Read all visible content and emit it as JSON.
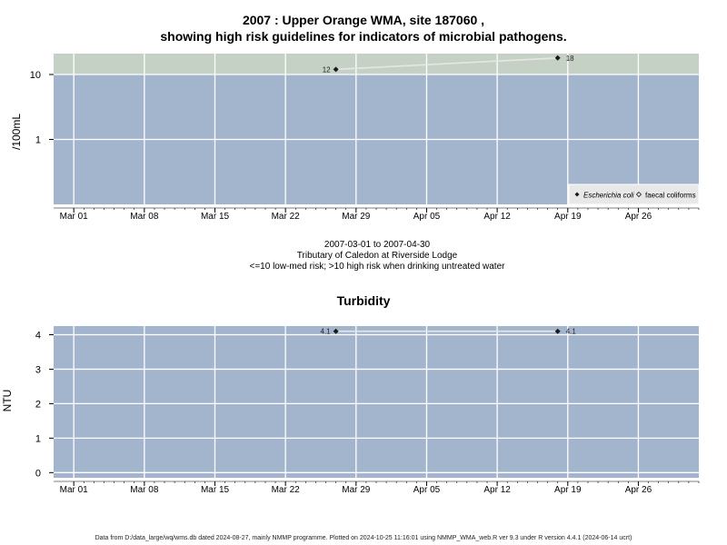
{
  "chart_data": [
    {
      "type": "line",
      "title": "2007 : Upper Orange WMA, site 187060 ,",
      "subtitle": "showing high risk guidelines for indicators of microbial pathogens.",
      "xlabel": "",
      "ylabel": "/100mL",
      "y_scale": "log",
      "x_range": [
        "2007-02-27",
        "2007-05-02"
      ],
      "ylim": [
        0.1,
        21
      ],
      "x_tick_labels": [
        "Mar 01",
        "Mar 08",
        "Mar 15",
        "Mar 22",
        "Mar 29",
        "Apr 05",
        "Apr 12",
        "Apr 19",
        "Apr 26"
      ],
      "y_tick_labels": [
        "1",
        "10"
      ],
      "y_ticks": [
        1,
        10
      ],
      "grid": true,
      "bands": [
        {
          "from": 0.1,
          "to": 10,
          "color": "#a2b5cd"
        },
        {
          "from": 10,
          "to": 21,
          "color": "#c6d1c6"
        }
      ],
      "legend_position": "bottom-right",
      "series": [
        {
          "name": "Escherichia coli",
          "marker": "filled-diamond",
          "x": [
            "2007-03-27",
            "2007-04-18"
          ],
          "y": [
            12,
            18
          ],
          "labels": [
            "12",
            "18"
          ]
        },
        {
          "name": "faecal coliforms",
          "marker": "open-diamond",
          "x": [],
          "y": []
        }
      ]
    },
    {
      "type": "line",
      "title": "Turbidity",
      "xlabel": "",
      "ylabel": "NTU",
      "x_range": [
        "2007-02-27",
        "2007-05-02"
      ],
      "ylim": [
        -0.15,
        4.25
      ],
      "x_tick_labels": [
        "Mar 01",
        "Mar 08",
        "Mar 15",
        "Mar 22",
        "Mar 29",
        "Apr 05",
        "Apr 12",
        "Apr 19",
        "Apr 26"
      ],
      "y_tick_labels": [
        "0",
        "1",
        "2",
        "3",
        "4"
      ],
      "y_ticks": [
        0,
        1,
        2,
        3,
        4
      ],
      "grid": true,
      "series": [
        {
          "x": [
            "2007-03-27",
            "2007-04-18"
          ],
          "y": [
            4.1,
            4.1
          ],
          "labels": [
            "4.1",
            "4.1"
          ]
        }
      ]
    }
  ],
  "range_text": "2007-03-01 to 2007-04-30",
  "site_text": "Tributary of Caledon at Riverside Lodge",
  "risk_text": "<=10 low-med risk; >10 high risk when drinking untreated water",
  "footer": "Data from D:/data_large/wq/wms.db dated 2024-08-27, mainly NMMP programme. Plotted on 2024-10-25 11:16:01 using NMMP_WMA_web.R ver 9.3 under R version 4.4.1 (2024-06-14 ucrt)",
  "colors": {
    "panel_blue": "#a2b5cd",
    "panel_green": "#c6d1c6",
    "grid": "#ffffff",
    "line": "#e6e6e6",
    "marker": "#1a1a1a"
  }
}
